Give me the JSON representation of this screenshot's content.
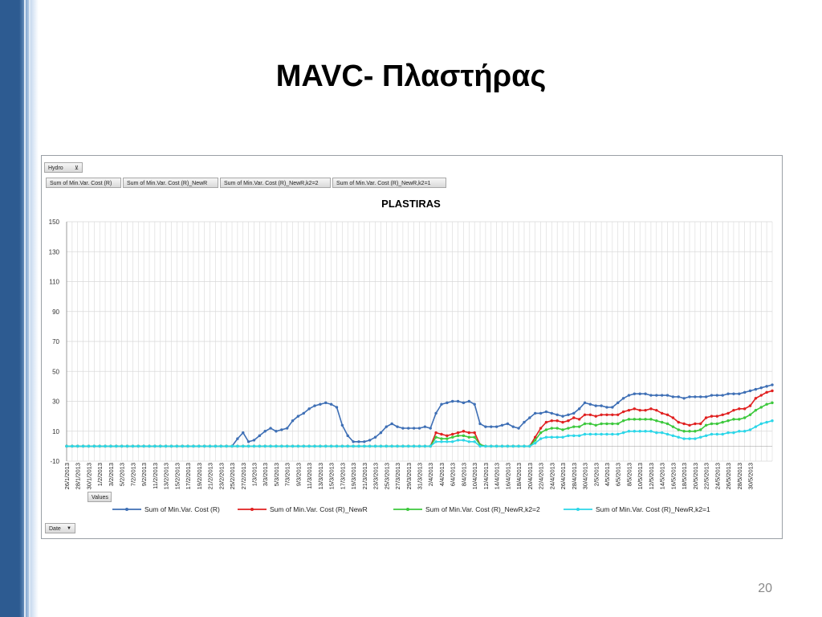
{
  "slide": {
    "title": "MAVC- Πλαστήρας",
    "page_number": "20"
  },
  "pivot": {
    "filter_button": "Hydro",
    "values_button": "Values",
    "axis_button": "Date",
    "value_fields": [
      "Sum of Min.Var. Cost (R)",
      "Sum of Min.Var. Cost (R)_NewR",
      "Sum of Min.Var. Cost (R)_NewR,k2=2",
      "Sum of Min.Var. Cost (R)_NewR,k2=1"
    ]
  },
  "colors": {
    "sidebar": "#2d5b91",
    "gridline": "#d9d9d9"
  },
  "chart_data": {
    "type": "line",
    "title": "PLASTIRAS",
    "xlabel": "",
    "ylabel": "",
    "ylim": [
      -10,
      150
    ],
    "yticks": [
      -10,
      10,
      30,
      50,
      70,
      90,
      110,
      130,
      150
    ],
    "grid": true,
    "legend_position": "bottom",
    "x_start": "26/1/2013",
    "x_end": "31/5/2013",
    "x_tick_labels": [
      "26/1/2013",
      "28/1/2013",
      "30/1/2013",
      "1/2/2013",
      "3/2/2013",
      "5/2/2013",
      "7/2/2013",
      "9/2/2013",
      "11/2/2013",
      "13/2/2013",
      "15/2/2013",
      "17/2/2013",
      "19/2/2013",
      "21/2/2013",
      "23/2/2013",
      "25/2/2013",
      "27/2/2013",
      "1/3/2013",
      "3/3/2013",
      "5/3/2013",
      "7/3/2013",
      "9/3/2013",
      "11/3/2013",
      "13/3/2013",
      "15/3/2013",
      "17/3/2013",
      "19/3/2013",
      "21/3/2013",
      "23/3/2013",
      "25/3/2013",
      "27/3/2013",
      "29/3/2013",
      "31/3/2013",
      "2/4/2013",
      "4/4/2013",
      "6/4/2013",
      "8/4/2013",
      "10/4/2013",
      "12/4/2013",
      "14/4/2013",
      "16/4/2013",
      "18/4/2013",
      "20/4/2013",
      "22/4/2013",
      "24/4/2013",
      "26/4/2013",
      "28/4/2013",
      "30/4/2013",
      "2/5/2013",
      "4/5/2013",
      "6/5/2013",
      "8/5/2013",
      "10/5/2013",
      "12/5/2013",
      "14/5/2013",
      "16/5/2013",
      "18/5/2013",
      "20/5/2013",
      "22/5/2013",
      "24/5/2013",
      "26/5/2013",
      "28/5/2013",
      "30/5/2013"
    ],
    "series": [
      {
        "name": "Sum of Min.Var. Cost (R)",
        "color": "#3e6fb5",
        "keypoints": [
          [
            0,
            0
          ],
          [
            30,
            0
          ],
          [
            31,
            5
          ],
          [
            32,
            9
          ],
          [
            33,
            3
          ],
          [
            34,
            4
          ],
          [
            35,
            7
          ],
          [
            36,
            10
          ],
          [
            37,
            12
          ],
          [
            38,
            10
          ],
          [
            39,
            11
          ],
          [
            40,
            12
          ],
          [
            41,
            17
          ],
          [
            42,
            20
          ],
          [
            43,
            22
          ],
          [
            44,
            25
          ],
          [
            45,
            27
          ],
          [
            46,
            28
          ],
          [
            47,
            29
          ],
          [
            48,
            28
          ],
          [
            49,
            26
          ],
          [
            50,
            14
          ],
          [
            51,
            7
          ],
          [
            52,
            3
          ],
          [
            53,
            3
          ],
          [
            54,
            3
          ],
          [
            55,
            4
          ],
          [
            56,
            6
          ],
          [
            57,
            9
          ],
          [
            58,
            13
          ],
          [
            59,
            15
          ],
          [
            60,
            13
          ],
          [
            61,
            12
          ],
          [
            62,
            12
          ],
          [
            63,
            12
          ],
          [
            64,
            12
          ],
          [
            65,
            13
          ],
          [
            66,
            12
          ],
          [
            67,
            22
          ],
          [
            68,
            28
          ],
          [
            69,
            29
          ],
          [
            70,
            30
          ],
          [
            71,
            30
          ],
          [
            72,
            29
          ],
          [
            73,
            30
          ],
          [
            74,
            28
          ],
          [
            75,
            15
          ],
          [
            76,
            13
          ],
          [
            77,
            13
          ],
          [
            78,
            13
          ],
          [
            79,
            14
          ],
          [
            80,
            15
          ],
          [
            81,
            13
          ],
          [
            82,
            12
          ],
          [
            83,
            16
          ],
          [
            84,
            19
          ],
          [
            85,
            22
          ],
          [
            86,
            22
          ],
          [
            87,
            23
          ],
          [
            88,
            22
          ],
          [
            89,
            21
          ],
          [
            90,
            20
          ],
          [
            91,
            21
          ],
          [
            92,
            22
          ],
          [
            93,
            25
          ],
          [
            94,
            29
          ],
          [
            95,
            28
          ],
          [
            96,
            27
          ],
          [
            97,
            27
          ],
          [
            98,
            26
          ],
          [
            99,
            26
          ],
          [
            100,
            29
          ],
          [
            101,
            32
          ],
          [
            102,
            34
          ],
          [
            103,
            35
          ],
          [
            104,
            35
          ],
          [
            105,
            35
          ],
          [
            106,
            34
          ],
          [
            107,
            34
          ],
          [
            108,
            34
          ],
          [
            109,
            34
          ],
          [
            110,
            33
          ],
          [
            111,
            33
          ],
          [
            112,
            32
          ],
          [
            113,
            33
          ],
          [
            114,
            33
          ],
          [
            115,
            33
          ],
          [
            116,
            33
          ],
          [
            117,
            34
          ],
          [
            118,
            34
          ],
          [
            119,
            34
          ],
          [
            120,
            35
          ],
          [
            121,
            35
          ],
          [
            122,
            35
          ],
          [
            123,
            36
          ],
          [
            124,
            37
          ],
          [
            125,
            38
          ],
          [
            126,
            39
          ],
          [
            127,
            40
          ],
          [
            128,
            41
          ]
        ]
      },
      {
        "name": "Sum of Min.Var. Cost (R)_NewR",
        "color": "#e02020",
        "keypoints": [
          [
            0,
            0
          ],
          [
            66,
            0
          ],
          [
            67,
            9
          ],
          [
            68,
            8
          ],
          [
            69,
            7
          ],
          [
            70,
            8
          ],
          [
            71,
            9
          ],
          [
            72,
            10
          ],
          [
            73,
            9
          ],
          [
            74,
            9
          ],
          [
            75,
            1
          ],
          [
            76,
            0
          ],
          [
            84,
            0
          ],
          [
            85,
            6
          ],
          [
            86,
            12
          ],
          [
            87,
            16
          ],
          [
            88,
            17
          ],
          [
            89,
            17
          ],
          [
            90,
            16
          ],
          [
            91,
            17
          ],
          [
            92,
            19
          ],
          [
            93,
            18
          ],
          [
            94,
            21
          ],
          [
            95,
            21
          ],
          [
            96,
            20
          ],
          [
            97,
            21
          ],
          [
            98,
            21
          ],
          [
            99,
            21
          ],
          [
            100,
            21
          ],
          [
            101,
            23
          ],
          [
            102,
            24
          ],
          [
            103,
            25
          ],
          [
            104,
            24
          ],
          [
            105,
            24
          ],
          [
            106,
            25
          ],
          [
            107,
            24
          ],
          [
            108,
            22
          ],
          [
            109,
            21
          ],
          [
            110,
            19
          ],
          [
            111,
            16
          ],
          [
            112,
            15
          ],
          [
            113,
            14
          ],
          [
            114,
            15
          ],
          [
            115,
            15
          ],
          [
            116,
            19
          ],
          [
            117,
            20
          ],
          [
            118,
            20
          ],
          [
            119,
            21
          ],
          [
            120,
            22
          ],
          [
            121,
            24
          ],
          [
            122,
            25
          ],
          [
            123,
            25
          ],
          [
            124,
            27
          ],
          [
            125,
            32
          ],
          [
            126,
            34
          ],
          [
            127,
            36
          ],
          [
            128,
            37
          ]
        ]
      },
      {
        "name": "Sum of Min.Var. Cost (R)_NewR,k2=2",
        "color": "#3cc83c",
        "keypoints": [
          [
            0,
            0
          ],
          [
            66,
            0
          ],
          [
            67,
            6
          ],
          [
            68,
            5
          ],
          [
            69,
            5
          ],
          [
            70,
            6
          ],
          [
            71,
            7
          ],
          [
            72,
            7
          ],
          [
            73,
            6
          ],
          [
            74,
            6
          ],
          [
            75,
            1
          ],
          [
            76,
            0
          ],
          [
            84,
            0
          ],
          [
            85,
            4
          ],
          [
            86,
            9
          ],
          [
            87,
            11
          ],
          [
            88,
            12
          ],
          [
            89,
            12
          ],
          [
            90,
            11
          ],
          [
            91,
            12
          ],
          [
            92,
            13
          ],
          [
            93,
            13
          ],
          [
            94,
            15
          ],
          [
            95,
            15
          ],
          [
            96,
            14
          ],
          [
            97,
            15
          ],
          [
            98,
            15
          ],
          [
            99,
            15
          ],
          [
            100,
            15
          ],
          [
            101,
            17
          ],
          [
            102,
            18
          ],
          [
            103,
            18
          ],
          [
            104,
            18
          ],
          [
            105,
            18
          ],
          [
            106,
            18
          ],
          [
            107,
            17
          ],
          [
            108,
            16
          ],
          [
            109,
            15
          ],
          [
            110,
            13
          ],
          [
            111,
            11
          ],
          [
            112,
            10
          ],
          [
            113,
            10
          ],
          [
            114,
            10
          ],
          [
            115,
            11
          ],
          [
            116,
            14
          ],
          [
            117,
            15
          ],
          [
            118,
            15
          ],
          [
            119,
            16
          ],
          [
            120,
            17
          ],
          [
            121,
            18
          ],
          [
            122,
            18
          ],
          [
            123,
            19
          ],
          [
            124,
            21
          ],
          [
            125,
            24
          ],
          [
            126,
            26
          ],
          [
            127,
            28
          ],
          [
            128,
            29
          ]
        ]
      },
      {
        "name": "Sum of Min.Var. Cost (R)_NewR,k2=1",
        "color": "#2bd6e8",
        "keypoints": [
          [
            0,
            0
          ],
          [
            66,
            0
          ],
          [
            67,
            3
          ],
          [
            68,
            3
          ],
          [
            69,
            3
          ],
          [
            70,
            3
          ],
          [
            71,
            4
          ],
          [
            72,
            4
          ],
          [
            73,
            3
          ],
          [
            74,
            3
          ],
          [
            75,
            0
          ],
          [
            84,
            0
          ],
          [
            85,
            2
          ],
          [
            86,
            5
          ],
          [
            87,
            6
          ],
          [
            88,
            6
          ],
          [
            89,
            6
          ],
          [
            90,
            6
          ],
          [
            91,
            7
          ],
          [
            92,
            7
          ],
          [
            93,
            7
          ],
          [
            94,
            8
          ],
          [
            95,
            8
          ],
          [
            96,
            8
          ],
          [
            97,
            8
          ],
          [
            98,
            8
          ],
          [
            99,
            8
          ],
          [
            100,
            8
          ],
          [
            101,
            9
          ],
          [
            102,
            10
          ],
          [
            103,
            10
          ],
          [
            104,
            10
          ],
          [
            105,
            10
          ],
          [
            106,
            10
          ],
          [
            107,
            9
          ],
          [
            108,
            9
          ],
          [
            109,
            8
          ],
          [
            110,
            7
          ],
          [
            111,
            6
          ],
          [
            112,
            5
          ],
          [
            113,
            5
          ],
          [
            114,
            5
          ],
          [
            115,
            6
          ],
          [
            116,
            7
          ],
          [
            117,
            8
          ],
          [
            118,
            8
          ],
          [
            119,
            8
          ],
          [
            120,
            9
          ],
          [
            121,
            9
          ],
          [
            122,
            10
          ],
          [
            123,
            10
          ],
          [
            124,
            11
          ],
          [
            125,
            13
          ],
          [
            126,
            15
          ],
          [
            127,
            16
          ],
          [
            128,
            17
          ]
        ]
      }
    ]
  }
}
